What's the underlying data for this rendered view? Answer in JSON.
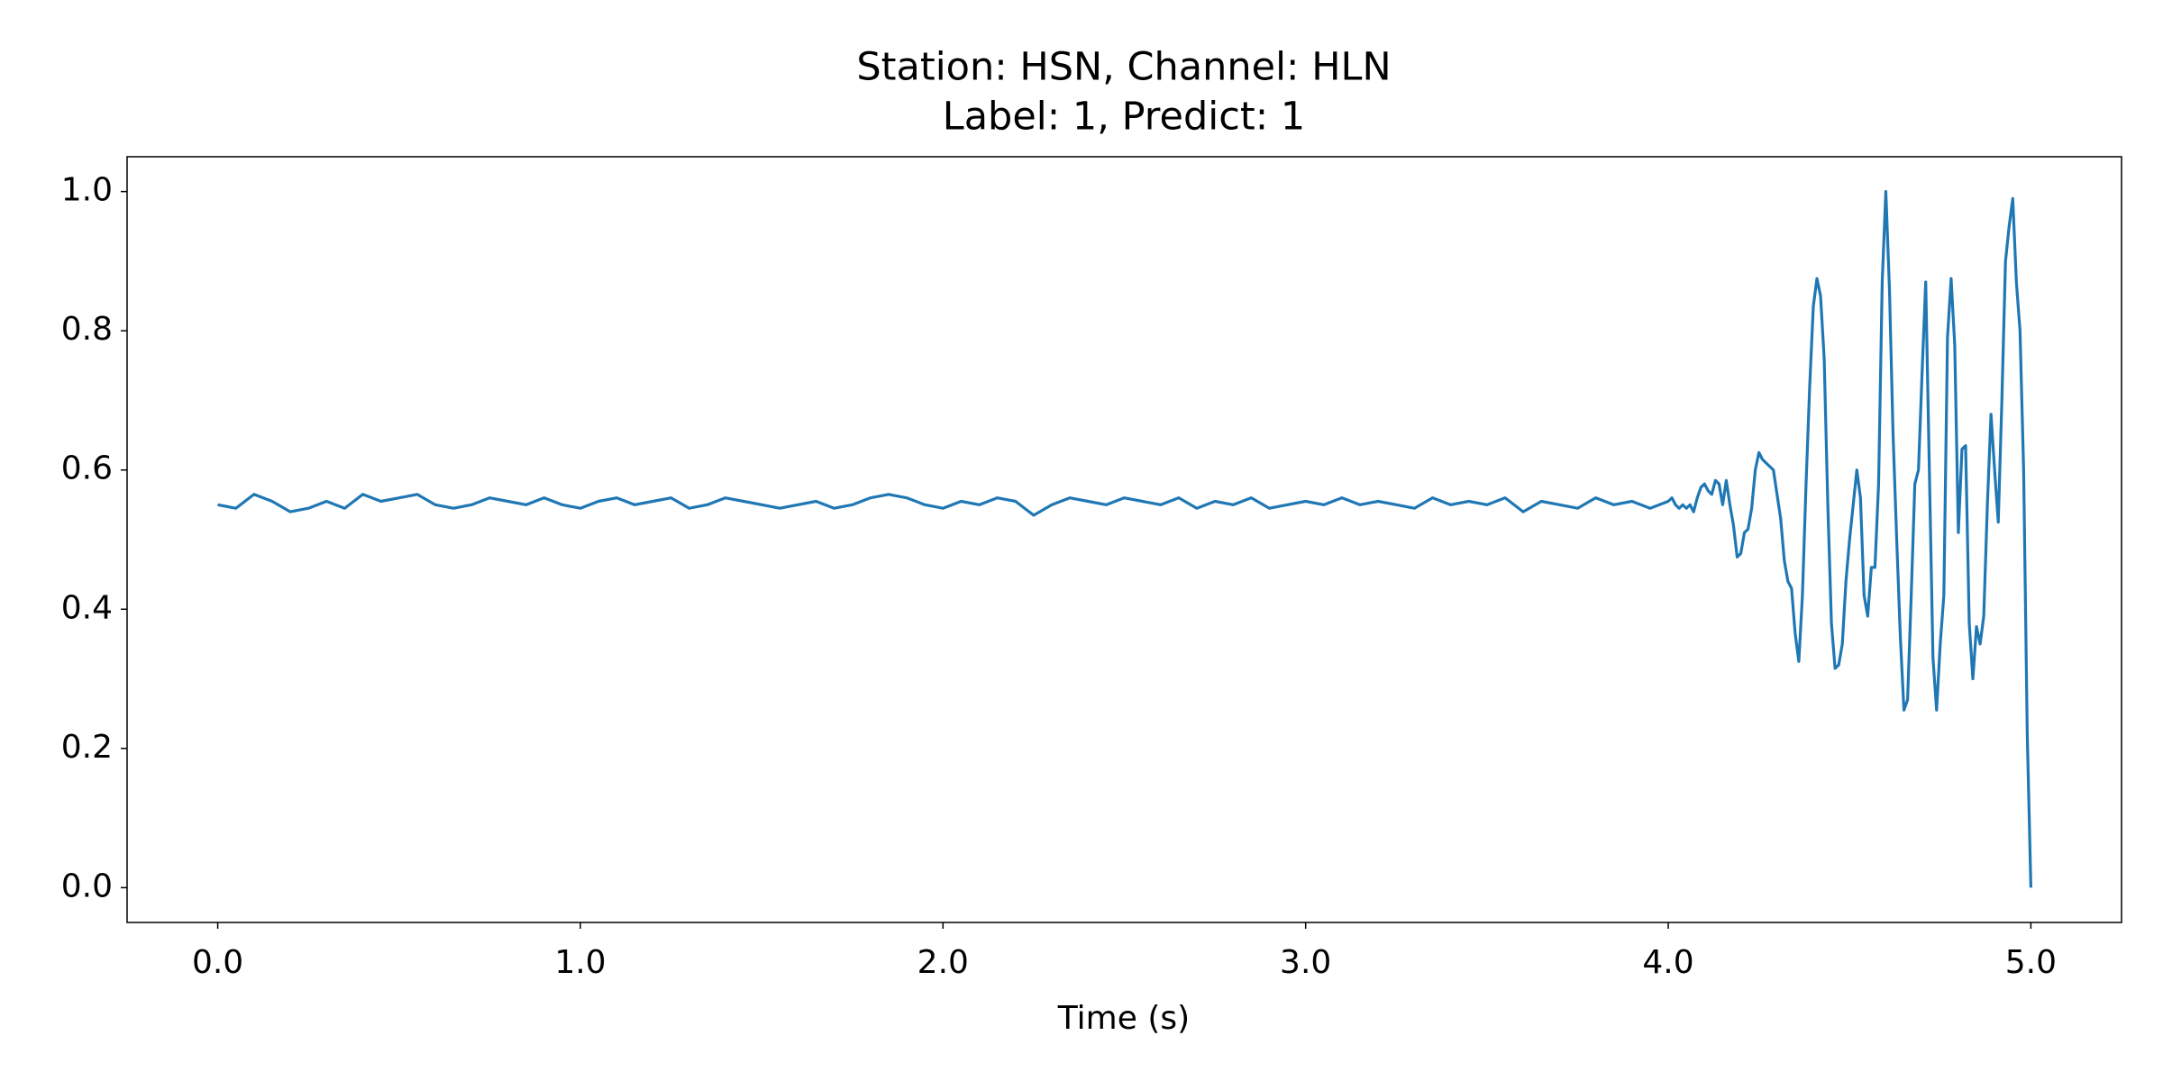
{
  "chart_data": {
    "type": "line",
    "title": "Station: HSN, Channel: HLN",
    "subtitle": "Label: 1, Predict: 1",
    "xlabel": "Time (s)",
    "color": "#1f77b4",
    "xlim": [
      -0.25,
      5.25
    ],
    "ylim": [
      -0.05,
      1.05
    ],
    "xticks": [
      {
        "value": 0,
        "label": "0.0"
      },
      {
        "value": 1,
        "label": "1.0"
      },
      {
        "value": 2,
        "label": "2.0"
      },
      {
        "value": 3,
        "label": "3.0"
      },
      {
        "value": 4,
        "label": "4.0"
      },
      {
        "value": 5,
        "label": "5.0"
      }
    ],
    "yticks": [
      {
        "value": 0,
        "label": "0.0"
      },
      {
        "value": 0.2,
        "label": "0.2"
      },
      {
        "value": 0.4,
        "label": "0.4"
      },
      {
        "value": 0.6,
        "label": "0.6"
      },
      {
        "value": 0.8,
        "label": "0.8"
      },
      {
        "value": 1,
        "label": "1.0"
      }
    ],
    "x": [
      0,
      0.05,
      0.1,
      0.15,
      0.2,
      0.25,
      0.3,
      0.35,
      0.4,
      0.45,
      0.5,
      0.55,
      0.6,
      0.65,
      0.7,
      0.75,
      0.8,
      0.85,
      0.9,
      0.95,
      1,
      1.05,
      1.1,
      1.15,
      1.2,
      1.25,
      1.3,
      1.35,
      1.4,
      1.45,
      1.5,
      1.55,
      1.6,
      1.65,
      1.7,
      1.75,
      1.8,
      1.85,
      1.9,
      1.95,
      2,
      2.05,
      2.1,
      2.15,
      2.2,
      2.25,
      2.3,
      2.35,
      2.4,
      2.45,
      2.5,
      2.55,
      2.6,
      2.65,
      2.7,
      2.75,
      2.8,
      2.85,
      2.9,
      2.95,
      3,
      3.05,
      3.1,
      3.15,
      3.2,
      3.25,
      3.3,
      3.35,
      3.4,
      3.45,
      3.5,
      3.55,
      3.6,
      3.65,
      3.7,
      3.75,
      3.8,
      3.85,
      3.9,
      3.95,
      4,
      4.01,
      4.02,
      4.03,
      4.04,
      4.05,
      4.06,
      4.07,
      4.08,
      4.09,
      4.1,
      4.11,
      4.12,
      4.13,
      4.14,
      4.15,
      4.16,
      4.17,
      4.18,
      4.19,
      4.2,
      4.21,
      4.22,
      4.23,
      4.24,
      4.25,
      4.26,
      4.27,
      4.28,
      4.29,
      4.3,
      4.31,
      4.32,
      4.33,
      4.34,
      4.35,
      4.36,
      4.37,
      4.38,
      4.39,
      4.4,
      4.41,
      4.42,
      4.43,
      4.44,
      4.45,
      4.46,
      4.47,
      4.48,
      4.49,
      4.5,
      4.51,
      4.52,
      4.53,
      4.54,
      4.55,
      4.56,
      4.57,
      4.58,
      4.59,
      4.6,
      4.61,
      4.62,
      4.63,
      4.64,
      4.65,
      4.66,
      4.67,
      4.68,
      4.69,
      4.7,
      4.71,
      4.72,
      4.73,
      4.74,
      4.75,
      4.76,
      4.77,
      4.78,
      4.79,
      4.8,
      4.81,
      4.82,
      4.83,
      4.84,
      4.85,
      4.86,
      4.87,
      4.88,
      4.89,
      4.9,
      4.91,
      4.92,
      4.93,
      4.94,
      4.95,
      4.96,
      4.97,
      4.98,
      4.99,
      5
    ],
    "values": [
      0.55,
      0.545,
      0.565,
      0.555,
      0.54,
      0.545,
      0.555,
      0.545,
      0.565,
      0.555,
      0.56,
      0.565,
      0.55,
      0.545,
      0.55,
      0.56,
      0.555,
      0.55,
      0.56,
      0.55,
      0.545,
      0.555,
      0.56,
      0.55,
      0.555,
      0.56,
      0.545,
      0.55,
      0.56,
      0.555,
      0.55,
      0.545,
      0.55,
      0.555,
      0.545,
      0.55,
      0.56,
      0.565,
      0.56,
      0.55,
      0.545,
      0.555,
      0.55,
      0.56,
      0.555,
      0.535,
      0.55,
      0.56,
      0.555,
      0.55,
      0.56,
      0.555,
      0.55,
      0.56,
      0.545,
      0.555,
      0.55,
      0.56,
      0.545,
      0.55,
      0.555,
      0.55,
      0.56,
      0.55,
      0.555,
      0.55,
      0.545,
      0.56,
      0.55,
      0.555,
      0.55,
      0.56,
      0.54,
      0.555,
      0.55,
      0.545,
      0.56,
      0.55,
      0.555,
      0.545,
      0.555,
      0.56,
      0.55,
      0.545,
      0.55,
      0.545,
      0.55,
      0.54,
      0.56,
      0.575,
      0.58,
      0.57,
      0.565,
      0.585,
      0.58,
      0.55,
      0.585,
      0.55,
      0.52,
      0.475,
      0.48,
      0.51,
      0.515,
      0.545,
      0.6,
      0.625,
      0.615,
      0.61,
      0.605,
      0.6,
      0.565,
      0.53,
      0.47,
      0.44,
      0.43,
      0.365,
      0.325,
      0.42,
      0.58,
      0.72,
      0.835,
      0.875,
      0.85,
      0.76,
      0.55,
      0.38,
      0.315,
      0.32,
      0.35,
      0.44,
      0.5,
      0.55,
      0.6,
      0.56,
      0.42,
      0.39,
      0.46,
      0.46,
      0.58,
      0.87,
      1.0,
      0.86,
      0.65,
      0.5,
      0.36,
      0.255,
      0.27,
      0.42,
      0.58,
      0.6,
      0.74,
      0.87,
      0.6,
      0.33,
      0.255,
      0.35,
      0.42,
      0.79,
      0.875,
      0.78,
      0.51,
      0.63,
      0.635,
      0.38,
      0.3,
      0.375,
      0.35,
      0.39,
      0.55,
      0.68,
      0.6,
      0.525,
      0.7,
      0.9,
      0.95,
      0.99,
      0.87,
      0.8,
      0.6,
      0.22,
      0.0
    ]
  }
}
